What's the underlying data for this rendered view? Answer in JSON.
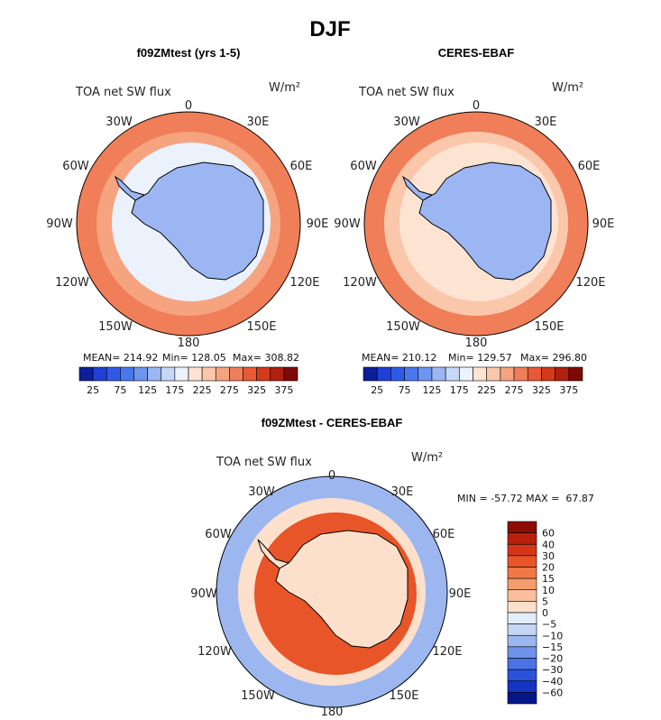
{
  "figure": {
    "title": "DJF",
    "variable_label": "TOA net SW flux",
    "units": "W/m²"
  },
  "chart_data": [
    {
      "type": "heatmap",
      "projection": "south-polar-stereographic",
      "title": "f09ZMtest (yrs 1-5)",
      "subtitle": "TOA net SW flux",
      "units": "W/m²",
      "longitude_labels": [
        "0",
        "30E",
        "60E",
        "90E",
        "120E",
        "150E",
        "180",
        "150W",
        "120W",
        "90W",
        "60W",
        "30W"
      ],
      "stats": {
        "mean": 214.92,
        "min": 128.05,
        "max": 308.82
      },
      "stats_text": {
        "mean": "MEAN= 214.92",
        "min": "Min= 128.05",
        "max": "Max= 308.82"
      },
      "colorbar": {
        "orientation": "horizontal",
        "levels": [
          25,
          50,
          75,
          100,
          125,
          150,
          175,
          200,
          225,
          250,
          275,
          300,
          325,
          350,
          375
        ],
        "tick_labels": [
          "25",
          "75",
          "125",
          "175",
          "225",
          "275",
          "325",
          "375"
        ],
        "colors": [
          "#0a1f99",
          "#1f3fd6",
          "#2f5ae8",
          "#4878ee",
          "#6e95ef",
          "#9bb6f2",
          "#c6d8f7",
          "#ecf2fc",
          "#fde3d2",
          "#fbc7ab",
          "#f6a37f",
          "#f07e58",
          "#e85a35",
          "#d4391c",
          "#b01f10",
          "#7e0a06"
        ]
      },
      "regions": {
        "antarctica": 140,
        "sea_ice_zone": 195,
        "high_lat_ocean": 250,
        "mid_lat_ocean": 275
      }
    },
    {
      "type": "heatmap",
      "projection": "south-polar-stereographic",
      "title": "CERES-EBAF",
      "subtitle": "TOA net SW flux",
      "units": "W/m²",
      "longitude_labels": [
        "0",
        "30E",
        "60E",
        "90E",
        "120E",
        "150E",
        "180",
        "150W",
        "120W",
        "90W",
        "60W",
        "30W"
      ],
      "stats": {
        "mean": 210.12,
        "min": 129.57,
        "max": 296.8
      },
      "stats_text": {
        "mean": "MEAN= 210.12",
        "min": "Min= 129.57",
        "max": "Max= 296.80"
      },
      "colorbar": {
        "orientation": "horizontal",
        "levels": [
          25,
          50,
          75,
          100,
          125,
          150,
          175,
          200,
          225,
          250,
          275,
          300,
          325,
          350,
          375
        ],
        "tick_labels": [
          "25",
          "75",
          "125",
          "175",
          "225",
          "275",
          "325",
          "375"
        ],
        "colors": [
          "#0a1f99",
          "#1f3fd6",
          "#2f5ae8",
          "#4878ee",
          "#6e95ef",
          "#9bb6f2",
          "#c6d8f7",
          "#ecf2fc",
          "#fde3d2",
          "#fbc7ab",
          "#f6a37f",
          "#f07e58",
          "#e85a35",
          "#d4391c",
          "#b01f10",
          "#7e0a06"
        ]
      },
      "regions": {
        "antarctica": 140,
        "sea_ice_zone": 210,
        "high_lat_ocean": 240,
        "mid_lat_ocean": 280
      }
    },
    {
      "type": "heatmap",
      "projection": "south-polar-stereographic",
      "title": "f09ZMtest - CERES-EBAF",
      "subtitle": "TOA net SW flux",
      "units": "W/m²",
      "longitude_labels": [
        "0",
        "30E",
        "60E",
        "90E",
        "120E",
        "150E",
        "180",
        "150W",
        "120W",
        "90W",
        "60W",
        "30W"
      ],
      "stats": {
        "min": -57.72,
        "max": 67.87
      },
      "stats_text": "MIN = -57.72 MAX =  67.87",
      "colorbar": {
        "orientation": "vertical",
        "levels": [
          60,
          40,
          30,
          20,
          15,
          10,
          5,
          0,
          -5,
          -10,
          -15,
          -20,
          -30,
          -40,
          -60
        ],
        "tick_labels": [
          "60",
          "40",
          "30",
          "20",
          "15",
          "10",
          "5",
          "0",
          "−5",
          "−10",
          "−15",
          "−20",
          "−30",
          "−40",
          "−60"
        ],
        "colors": [
          "#8c0c04",
          "#b8200c",
          "#d5361a",
          "#e85528",
          "#f07845",
          "#f59c6d",
          "#f9bf9b",
          "#fde0cc",
          "#e4ecfa",
          "#c5d6f5",
          "#9cb7f0",
          "#6f93eb",
          "#4a72e6",
          "#2a52dd",
          "#1434c4",
          "#05168a"
        ]
      },
      "regions": {
        "antarctica": 2,
        "sea_ice_zone": 25,
        "high_lat_ocean": 3,
        "mid_lat_ocean": -12
      }
    }
  ]
}
